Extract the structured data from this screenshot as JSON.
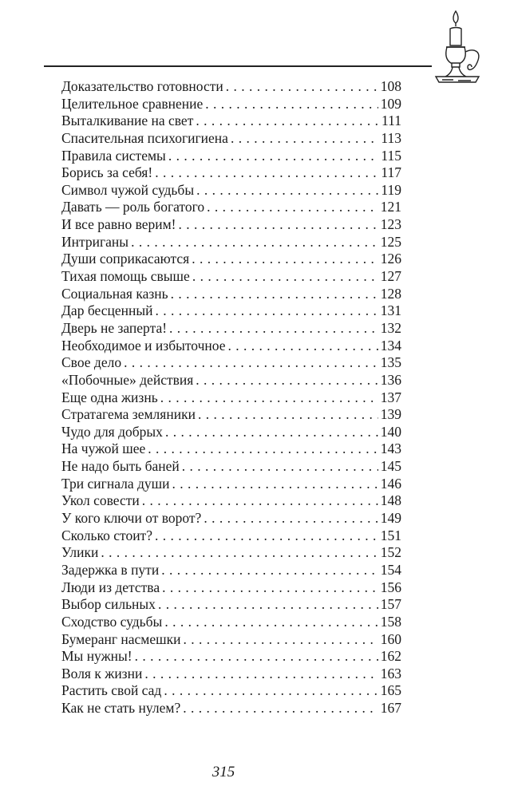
{
  "decoration": {
    "icon": "candlestick-icon"
  },
  "toc": [
    {
      "title": "Доказательство готовности",
      "page": "108"
    },
    {
      "title": "Целительное сравнение",
      "page": "109"
    },
    {
      "title": "Выталкивание на свет",
      "page": "111"
    },
    {
      "title": "Спасительная психогигиена",
      "page": "113"
    },
    {
      "title": "Правила системы",
      "page": "115"
    },
    {
      "title": "Борись за себя!",
      "page": "117"
    },
    {
      "title": "Символ чужой судьбы",
      "page": "119"
    },
    {
      "title": "Давать — роль богатого",
      "page": "121"
    },
    {
      "title": "И все равно верим!",
      "page": "123"
    },
    {
      "title": "Интриганы",
      "page": "125"
    },
    {
      "title": "Души соприкасаются",
      "page": "126"
    },
    {
      "title": "Тихая помощь свыше",
      "page": "127"
    },
    {
      "title": "Социальная казнь",
      "page": "128"
    },
    {
      "title": "Дар бесценный",
      "page": "131"
    },
    {
      "title": "Дверь не заперта!",
      "page": "132"
    },
    {
      "title": "Необходимое и избыточное",
      "page": "134"
    },
    {
      "title": "Свое дело",
      "page": "135"
    },
    {
      "title": "«Побочные» действия",
      "page": "136"
    },
    {
      "title": "Еще одна жизнь",
      "page": "137"
    },
    {
      "title": "Стратагема земляники",
      "page": "139"
    },
    {
      "title": "Чудо для добрых",
      "page": "140"
    },
    {
      "title": "На чужой шее",
      "page": "143"
    },
    {
      "title": "Не надо быть баней",
      "page": "145"
    },
    {
      "title": "Три сигнала души",
      "page": "146"
    },
    {
      "title": "Укол совести",
      "page": "148"
    },
    {
      "title": "У кого ключи от ворот?",
      "page": "149"
    },
    {
      "title": "Сколько стоит?",
      "page": "151"
    },
    {
      "title": "Улики",
      "page": "152"
    },
    {
      "title": "Задержка в пути",
      "page": "154"
    },
    {
      "title": "Люди из детства",
      "page": "156"
    },
    {
      "title": "Выбор сильных",
      "page": "157"
    },
    {
      "title": "Сходство судьбы",
      "page": "158"
    },
    {
      "title": "Бумеранг насмешки",
      "page": "160"
    },
    {
      "title": "Мы нужны!",
      "page": "162"
    },
    {
      "title": "Воля к жизни",
      "page": "163"
    },
    {
      "title": "Растить свой сад",
      "page": "165"
    },
    {
      "title": "Как не стать нулем?",
      "page": "167"
    }
  ],
  "footer": {
    "page_number": "315"
  }
}
